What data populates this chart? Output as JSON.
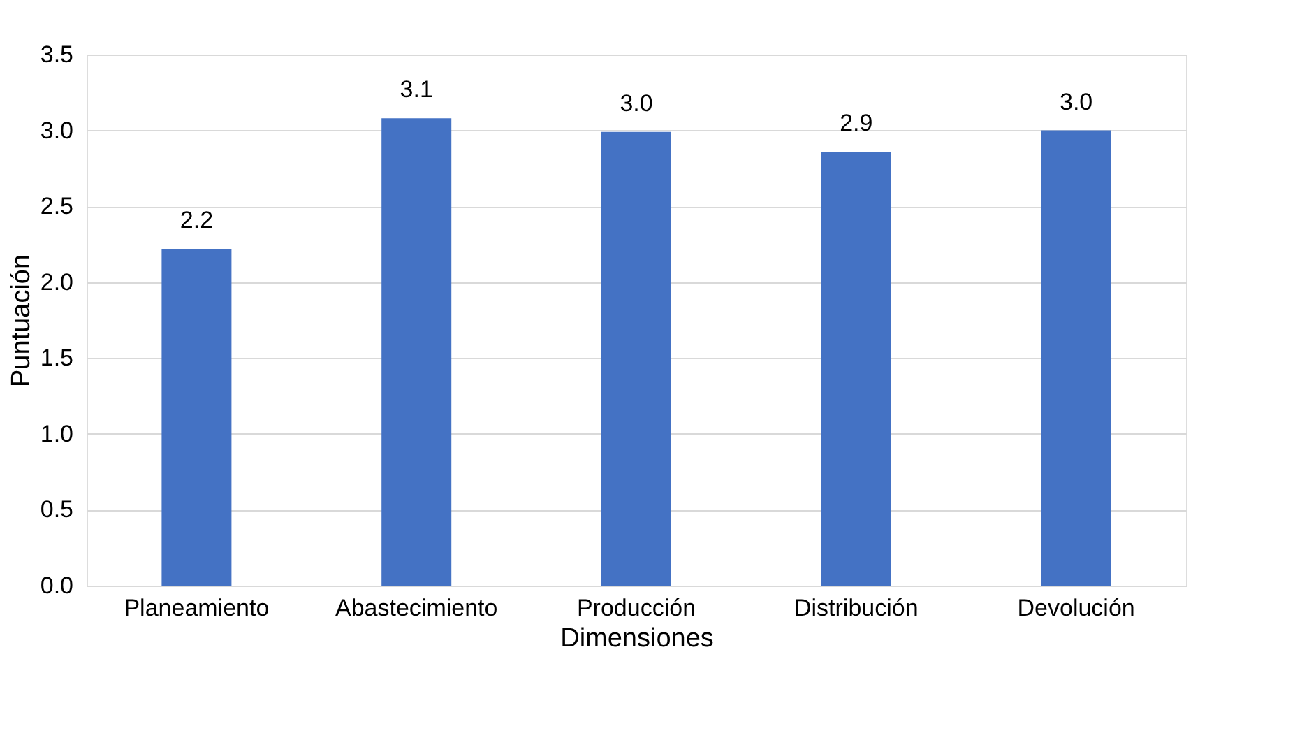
{
  "chart_data": {
    "type": "bar",
    "xlabel": "Dimensiones",
    "ylabel": "Puntuación",
    "categories": [
      "Planeamiento",
      "Abastecimiento",
      "Producción",
      "Distribución",
      "Devolución"
    ],
    "values": [
      2.22,
      3.08,
      2.99,
      2.86,
      3.0
    ],
    "color": "#4472c4",
    "value_labels": [
      "2.2",
      "3.1",
      "3.0",
      "2.9",
      "3.0"
    ],
    "ylim": [
      0,
      3.5
    ],
    "yticks": [
      {
        "value": 0,
        "label": "0.0"
      },
      0.5,
      {
        "value": 1,
        "label": "1.0"
      },
      1.5,
      {
        "value": 2,
        "label": "2.0"
      },
      2.5,
      {
        "value": 3,
        "label": "3.0"
      },
      3.5
    ],
    "grid": "y"
  }
}
